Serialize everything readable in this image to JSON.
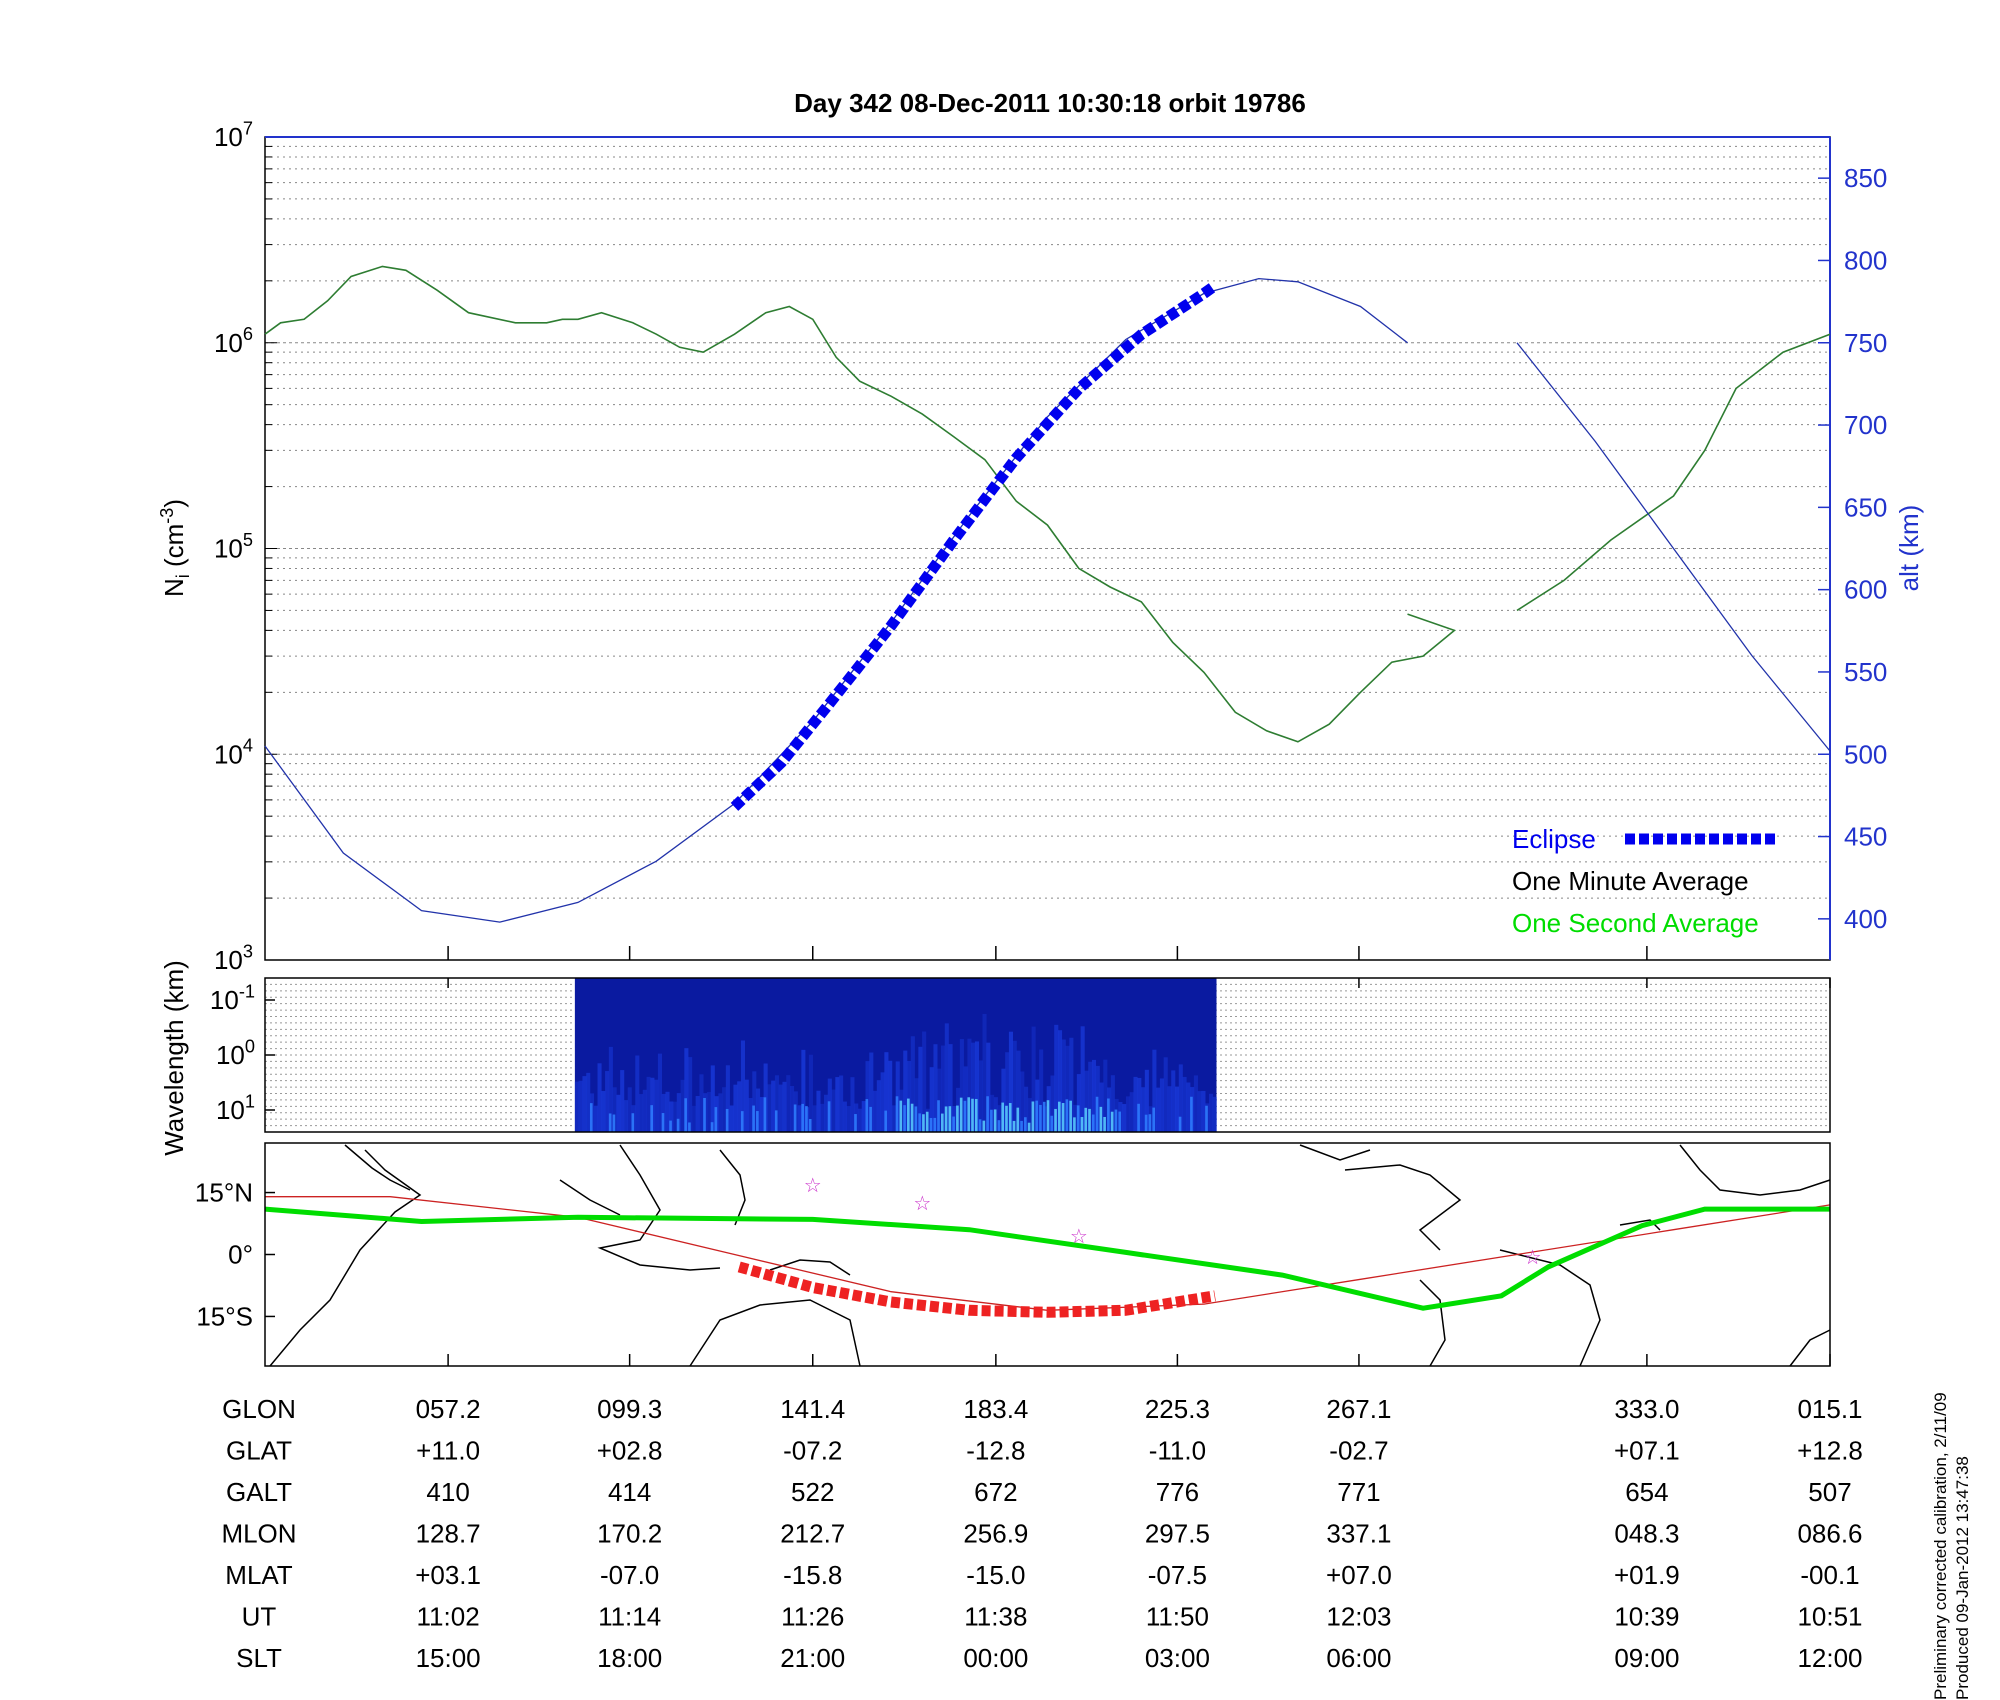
{
  "title": "Day 342  08-Dec-2011 10:30:18   orbit 19786",
  "chart_data": [
    {
      "type": "line",
      "panel": "density",
      "ylabel": "N",
      "ylabel_sub": "i",
      "ylabel_unit": "(cm",
      "ylabel_unit_exp": "-3",
      "ylabel_unit_close": ")",
      "y2label": "alt (km)",
      "yscale": "log",
      "ylim": [
        1000,
        10000000
      ],
      "ytick_labels": [
        {
          "base": "10",
          "exp": "3",
          "value": 1000
        },
        {
          "base": "10",
          "exp": "4",
          "value": 10000
        },
        {
          "base": "10",
          "exp": "5",
          "value": 100000
        },
        {
          "base": "10",
          "exp": "6",
          "value": 1000000
        },
        {
          "base": "10",
          "exp": "7",
          "value": 10000000
        }
      ],
      "y2lim": [
        375,
        875
      ],
      "y2ticks": [
        400,
        450,
        500,
        550,
        600,
        650,
        700,
        750,
        800,
        850
      ],
      "xlim": [
        0,
        1
      ],
      "xtick_positions": [
        0.117,
        0.233,
        0.35,
        0.467,
        0.583,
        0.699,
        0.883,
        1.0
      ],
      "grid": true,
      "colors": {
        "density": "#2e7d32",
        "altitude": "#2233aa",
        "eclipse": "#0000ee",
        "axis_right": "#2233cc"
      },
      "legend": {
        "position": "bottom-right",
        "entries": [
          {
            "label": "Eclipse",
            "color": "#0000ee"
          },
          {
            "label": "One Minute Average",
            "color": "#000000"
          },
          {
            "label": "One Second Average",
            "color": "#00dd00"
          }
        ]
      },
      "series": [
        {
          "role": "density",
          "segments": [
            [
              [
                0,
                1100000
              ],
              [
                0.01,
                1250000
              ],
              [
                0.025,
                1300000
              ],
              [
                0.04,
                1600000
              ],
              [
                0.055,
                2100000
              ],
              [
                0.075,
                2350000
              ],
              [
                0.09,
                2250000
              ],
              [
                0.11,
                1800000
              ],
              [
                0.13,
                1400000
              ],
              [
                0.16,
                1250000
              ],
              [
                0.18,
                1250000
              ],
              [
                0.19,
                1300000
              ],
              [
                0.19,
                1300000
              ],
              [
                0.2,
                1300000
              ],
              [
                0.215,
                1400000
              ],
              [
                0.235,
                1250000
              ],
              [
                0.25,
                1100000
              ],
              [
                0.265,
                950000
              ],
              [
                0.28,
                900000
              ],
              [
                0.3,
                1100000
              ],
              [
                0.32,
                1400000
              ],
              [
                0.335,
                1500000
              ],
              [
                0.35,
                1300000
              ],
              [
                0.365,
                850000
              ],
              [
                0.38,
                650000
              ],
              [
                0.4,
                550000
              ],
              [
                0.42,
                450000
              ],
              [
                0.44,
                350000
              ],
              [
                0.46,
                270000
              ],
              [
                0.48,
                170000
              ],
              [
                0.5,
                130000
              ],
              [
                0.52,
                80000
              ],
              [
                0.54,
                65000
              ],
              [
                0.56,
                55000
              ],
              [
                0.58,
                35000
              ],
              [
                0.6,
                25000
              ],
              [
                0.62,
                16000
              ],
              [
                0.64,
                13000
              ],
              [
                0.66,
                11500
              ],
              [
                0.68,
                14000
              ],
              [
                0.7,
                20000
              ],
              [
                0.72,
                28000
              ],
              [
                0.74,
                30000
              ],
              [
                0.76,
                40000
              ],
              [
                0.73,
                48000
              ]
            ],
            [
              [
                0.8,
                50000
              ],
              [
                0.83,
                70000
              ],
              [
                0.86,
                110000
              ],
              [
                0.9,
                180000
              ],
              [
                0.92,
                300000
              ],
              [
                0.94,
                600000
              ],
              [
                0.97,
                900000
              ],
              [
                1.0,
                1100000
              ]
            ]
          ]
        },
        {
          "role": "altitude_km",
          "segments": [
            [
              [
                0,
                505
              ],
              [
                0.05,
                440
              ],
              [
                0.1,
                405
              ],
              [
                0.15,
                398
              ],
              [
                0.2,
                410
              ],
              [
                0.25,
                435
              ],
              [
                0.3,
                470
              ],
              [
                0.35,
                520
              ],
              [
                0.4,
                580
              ],
              [
                0.45,
                645
              ],
              [
                0.5,
                705
              ],
              [
                0.55,
                752
              ],
              [
                0.6,
                780
              ],
              [
                0.635,
                789
              ],
              [
                0.66,
                787
              ],
              [
                0.7,
                772
              ],
              [
                0.73,
                750
              ]
            ],
            [
              [
                0.8,
                750
              ],
              [
                0.85,
                690
              ],
              [
                0.9,
                625
              ],
              [
                0.95,
                560
              ],
              [
                1.0,
                502
              ]
            ]
          ]
        },
        {
          "role": "eclipse_km",
          "segments": [
            [
              [
                0.3,
                468
              ],
              [
                0.33,
                495
              ],
              [
                0.36,
                530
              ],
              [
                0.4,
                578
              ],
              [
                0.44,
                630
              ],
              [
                0.48,
                680
              ],
              [
                0.52,
                722
              ],
              [
                0.56,
                755
              ],
              [
                0.6,
                780
              ],
              [
                0.606,
                784
              ]
            ]
          ]
        }
      ]
    },
    {
      "type": "heatmap",
      "panel": "spectrogram",
      "ylabel": "Wavelength (km)",
      "ytick_labels": [
        {
          "base": "10",
          "exp": "-1"
        },
        {
          "base": "10",
          "exp": "0"
        },
        {
          "base": "10",
          "exp": "1"
        }
      ],
      "xlim": [
        0,
        1
      ],
      "data_extent": [
        0.198,
        0.608
      ],
      "colormap": [
        "#0a1aa0",
        "#1b3de0",
        "#2f7fff",
        "#5ad0ff"
      ]
    },
    {
      "type": "map",
      "panel": "ground_track",
      "ytick_labels": [
        "15°N",
        "0°",
        "15°S"
      ],
      "ytick_values": [
        15,
        0,
        -15
      ],
      "ylim": [
        -27,
        27
      ],
      "xlim": [
        0,
        1
      ],
      "colors": {
        "track": "#00dd00",
        "orbit": "#cc2222",
        "eclipse": "#ee2222",
        "coast": "#000000",
        "stars": "#cc33cc"
      },
      "track_lat": [
        [
          0,
          11
        ],
        [
          0.1,
          8
        ],
        [
          0.2,
          9
        ],
        [
          0.35,
          8.5
        ],
        [
          0.45,
          6
        ],
        [
          0.55,
          0.5
        ],
        [
          0.65,
          -5
        ],
        [
          0.74,
          -13
        ],
        [
          0.79,
          -10
        ],
        [
          0.82,
          -3
        ],
        [
          0.88,
          7
        ],
        [
          0.92,
          11
        ],
        [
          1.0,
          11
        ]
      ],
      "orbit_lat": [
        [
          0,
          14
        ],
        [
          0.08,
          14
        ],
        [
          0.2,
          9
        ],
        [
          0.3,
          0
        ],
        [
          0.4,
          -9
        ],
        [
          0.5,
          -13.5
        ],
        [
          0.6,
          -12
        ],
        [
          0.7,
          -6
        ],
        [
          0.8,
          0
        ],
        [
          0.9,
          6
        ],
        [
          1.0,
          12
        ]
      ],
      "eclipse_lat": [
        [
          0.303,
          -3
        ],
        [
          0.35,
          -8
        ],
        [
          0.4,
          -11.5
        ],
        [
          0.45,
          -13.5
        ],
        [
          0.5,
          -14
        ],
        [
          0.55,
          -13.5
        ],
        [
          0.607,
          -10
        ]
      ]
    }
  ],
  "table": {
    "labels": [
      "GLON",
      "GLAT",
      "GALT",
      "MLON",
      "MLAT",
      "UT",
      "SLT"
    ],
    "columns": [
      [
        "057.2",
        "+11.0",
        "410",
        "128.7",
        "+03.1",
        "11:02",
        "15:00"
      ],
      [
        "099.3",
        "+02.8",
        "414",
        "170.2",
        "-07.0",
        "11:14",
        "18:00"
      ],
      [
        "141.4",
        "-07.2",
        "522",
        "212.7",
        "-15.8",
        "11:26",
        "21:00"
      ],
      [
        "183.4",
        "-12.8",
        "672",
        "256.9",
        "-15.0",
        "11:38",
        "00:00"
      ],
      [
        "225.3",
        "-11.0",
        "776",
        "297.5",
        "-07.5",
        "11:50",
        "03:00"
      ],
      [
        "267.1",
        "-02.7",
        "771",
        "337.1",
        "+07.0",
        "12:03",
        "06:00"
      ],
      [
        "333.0",
        "+07.1",
        "654",
        "048.3",
        "+01.9",
        "10:39",
        "09:00"
      ],
      [
        "015.1",
        "+12.8",
        "507",
        "086.6",
        "-00.1",
        "10:51",
        "12:00"
      ]
    ]
  },
  "footer": {
    "line1": "Preliminary corrected calibration, 2/11/09",
    "line2": "Produced 09-Jan-2012 13:47:38"
  }
}
